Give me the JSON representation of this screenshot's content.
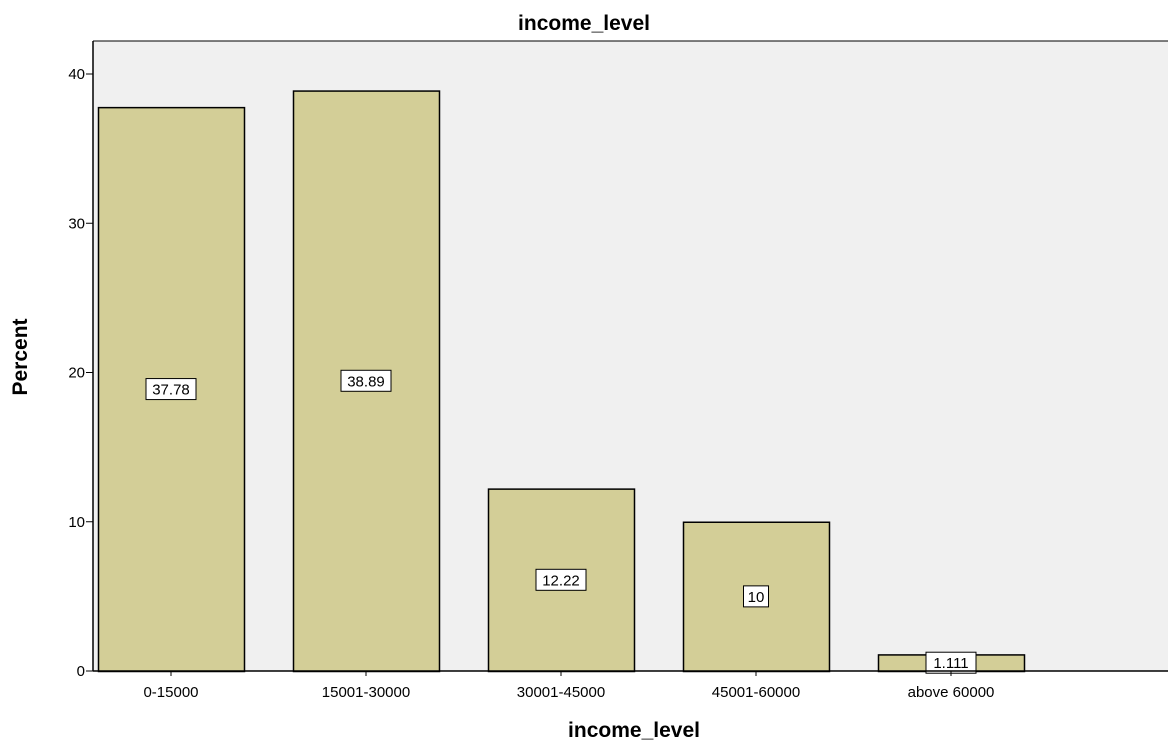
{
  "chart_data": {
    "type": "bar",
    "title": "income_level",
    "xlabel": "income_level",
    "ylabel": "Percent",
    "categories": [
      "0-15000",
      "15001-30000",
      "30001-45000",
      "45001-60000",
      "above 60000"
    ],
    "values": [
      37.78,
      38.89,
      12.22,
      10,
      1.111
    ],
    "data_labels": [
      "37.78",
      "38.89",
      "12.22",
      "10",
      "1.111"
    ],
    "ylim": [
      0,
      40
    ],
    "yticks": [
      0,
      10,
      20,
      30,
      40
    ],
    "ytick_labels": [
      "0",
      "10",
      "20",
      "30",
      "40"
    ],
    "grid": false,
    "legend": "none"
  },
  "colors": {
    "plot_background": "#f0f0f0",
    "bar_fill": "#d3ce97",
    "bar_stroke": "#000000",
    "axis": "#000000",
    "label_box_fill": "#ffffff",
    "label_box_stroke": "#000000"
  }
}
